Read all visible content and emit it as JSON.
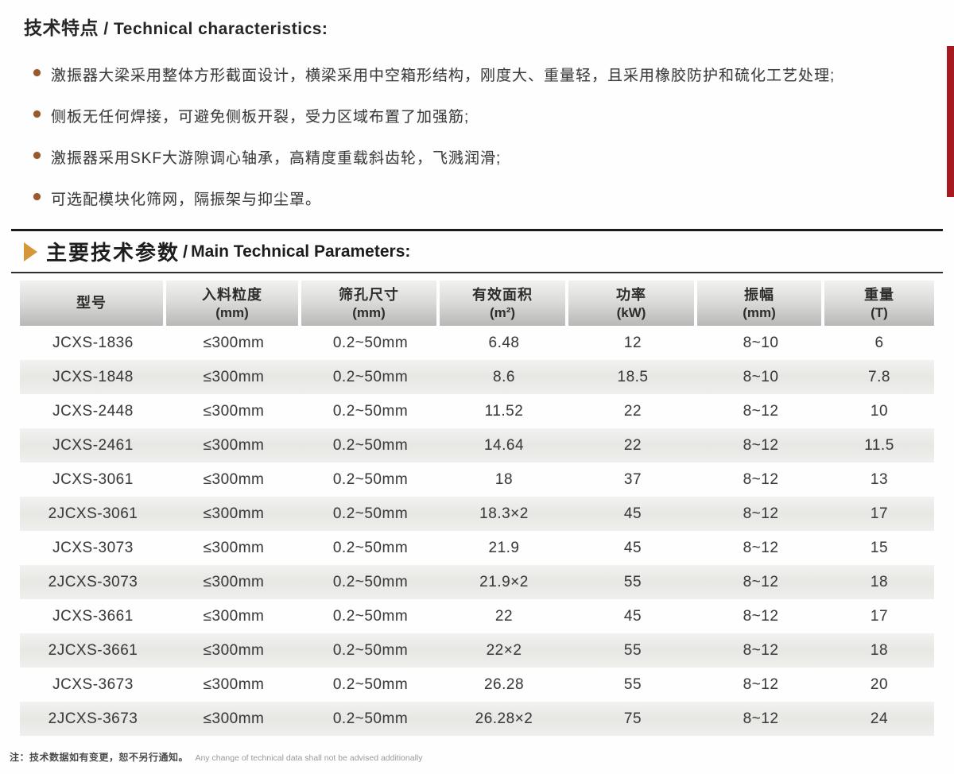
{
  "features": {
    "title_zh": "技术特点",
    "title_sep": " / ",
    "title_en": "Technical characteristics:",
    "bullets": [
      "激振器大梁采用整体方形截面设计，横梁采用中空箱形结构，刚度大、重量轻，且采用橡胶防护和硫化工艺处理;",
      "侧板无任何焊接，可避免侧板开裂，受力区域布置了加强筋;",
      "激振器采用SKF大游隙调心轴承，高精度重载斜齿轮，飞溅润滑;",
      "可选配模块化筛网，隔振架与抑尘罩。"
    ]
  },
  "parameters": {
    "title_zh": "主要技术参数",
    "title_sep": " / ",
    "title_en": "Main Technical Parameters:"
  },
  "chart_data": {
    "type": "table",
    "columns": [
      {
        "label": "型号",
        "unit": ""
      },
      {
        "label": "入料粒度",
        "unit": "(mm)"
      },
      {
        "label": "筛孔尺寸",
        "unit": "(mm)"
      },
      {
        "label": "有效面积",
        "unit": "(m²)"
      },
      {
        "label": "功率",
        "unit": "(kW)"
      },
      {
        "label": "振幅",
        "unit": "(mm)"
      },
      {
        "label": "重量",
        "unit": "(T)"
      }
    ],
    "rows": [
      [
        "JCXS-1836",
        "≤300mm",
        "0.2~50mm",
        "6.48",
        "12",
        "8~10",
        "6"
      ],
      [
        "JCXS-1848",
        "≤300mm",
        "0.2~50mm",
        "8.6",
        "18.5",
        "8~10",
        "7.8"
      ],
      [
        "JCXS-2448",
        "≤300mm",
        "0.2~50mm",
        "11.52",
        "22",
        "8~12",
        "10"
      ],
      [
        "JCXS-2461",
        "≤300mm",
        "0.2~50mm",
        "14.64",
        "22",
        "8~12",
        "11.5"
      ],
      [
        "JCXS-3061",
        "≤300mm",
        "0.2~50mm",
        "18",
        "37",
        "8~12",
        "13"
      ],
      [
        "2JCXS-3061",
        "≤300mm",
        "0.2~50mm",
        "18.3×2",
        "45",
        "8~12",
        "17"
      ],
      [
        "JCXS-3073",
        "≤300mm",
        "0.2~50mm",
        "21.9",
        "45",
        "8~12",
        "15"
      ],
      [
        "2JCXS-3073",
        "≤300mm",
        "0.2~50mm",
        "21.9×2",
        "55",
        "8~12",
        "18"
      ],
      [
        "JCXS-3661",
        "≤300mm",
        "0.2~50mm",
        "22",
        "45",
        "8~12",
        "17"
      ],
      [
        "2JCXS-3661",
        "≤300mm",
        "0.2~50mm",
        "22×2",
        "55",
        "8~12",
        "18"
      ],
      [
        "JCXS-3673",
        "≤300mm",
        "0.2~50mm",
        "26.28",
        "55",
        "8~12",
        "20"
      ],
      [
        "2JCXS-3673",
        "≤300mm",
        "0.2~50mm",
        "26.28×2",
        "75",
        "8~12",
        "24"
      ]
    ]
  },
  "footnote": {
    "zh": "注：技术数据如有变更，恕不另行通知。",
    "en": "Any change of technical data shall not be advised additionally"
  },
  "colors": {
    "bullet_dot": "#99592a",
    "accent_triangle": "#d4983b",
    "red_tab": "#a6191f",
    "rule_black": "#1c1c1c"
  }
}
